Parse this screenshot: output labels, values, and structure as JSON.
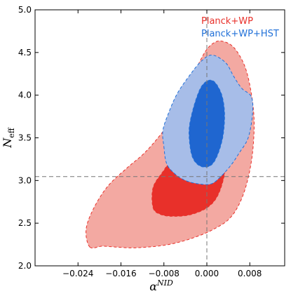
{
  "chart_data": {
    "type": "contour",
    "xlabel": "α",
    "xlabel_sup": "NID",
    "ylabel": "N",
    "ylabel_sub": "eff",
    "xlim": [
      -0.032,
      0.0145
    ],
    "ylim": [
      2.0,
      5.0
    ],
    "xticks": [
      -0.024,
      -0.016,
      -0.008,
      0.0,
      0.008
    ],
    "xtick_labels": [
      "−0.024",
      "−0.016",
      "−0.008",
      "0.000",
      "0.008"
    ],
    "yticks": [
      2.0,
      2.5,
      3.0,
      3.5,
      4.0,
      4.5,
      5.0
    ],
    "ytick_labels": [
      "2.0",
      "2.5",
      "3.0",
      "3.5",
      "4.0",
      "4.5",
      "5.0"
    ],
    "reference_lines": {
      "x": 0.0,
      "y": 3.046
    },
    "legend_position": "top-right",
    "series": [
      {
        "name": "Planck+WP",
        "color": "#e8302a",
        "contours": [
          {
            "level": "95%",
            "fill": "#f3a9a2",
            "points": [
              [
                -0.0218,
                2.22
              ],
              [
                -0.0195,
                2.23
              ],
              [
                -0.017,
                2.22
              ],
              [
                -0.014,
                2.21
              ],
              [
                -0.011,
                2.22
              ],
              [
                -0.008,
                2.24
              ],
              [
                -0.005,
                2.28
              ],
              [
                -0.002,
                2.34
              ],
              [
                0.001,
                2.42
              ],
              [
                0.004,
                2.54
              ],
              [
                0.006,
                2.72
              ],
              [
                0.0075,
                2.98
              ],
              [
                0.0085,
                3.32
              ],
              [
                0.0088,
                3.7
              ],
              [
                0.0082,
                4.05
              ],
              [
                0.007,
                4.35
              ],
              [
                0.005,
                4.56
              ],
              [
                0.003,
                4.63
              ],
              [
                0.0015,
                4.62
              ],
              [
                -0.0002,
                4.52
              ],
              [
                -0.0022,
                4.28
              ],
              [
                -0.0045,
                3.98
              ],
              [
                -0.007,
                3.68
              ],
              [
                -0.0095,
                3.47
              ],
              [
                -0.012,
                3.3
              ],
              [
                -0.015,
                3.14
              ],
              [
                -0.0185,
                2.93
              ],
              [
                -0.0212,
                2.66
              ],
              [
                -0.0225,
                2.42
              ]
            ]
          },
          {
            "level": "68%",
            "fill": "#e8302a",
            "points": [
              [
                -0.01,
                2.68
              ],
              [
                -0.0085,
                2.6
              ],
              [
                -0.006,
                2.58
              ],
              [
                -0.003,
                2.6
              ],
              [
                0.0,
                2.68
              ],
              [
                0.002,
                2.82
              ],
              [
                0.0033,
                3.08
              ],
              [
                0.0037,
                3.4
              ],
              [
                0.0033,
                3.7
              ],
              [
                0.002,
                3.9
              ],
              [
                0.0005,
                3.95
              ],
              [
                -0.001,
                3.85
              ],
              [
                -0.003,
                3.6
              ],
              [
                -0.0055,
                3.35
              ],
              [
                -0.008,
                3.12
              ],
              [
                -0.01,
                2.92
              ]
            ]
          }
        ]
      },
      {
        "name": "Planck+WP+HST",
        "color": "#2070d8",
        "contours": [
          {
            "level": "95%",
            "fill": "#a7bde8",
            "points": [
              [
                -0.008,
                3.4
              ],
              [
                -0.0075,
                3.2
              ],
              [
                -0.006,
                3.08
              ],
              [
                -0.004,
                3.0
              ],
              [
                -0.0015,
                2.96
              ],
              [
                0.0008,
                2.96
              ],
              [
                0.0025,
                3.04
              ],
              [
                0.0045,
                3.18
              ],
              [
                0.006,
                3.32
              ],
              [
                0.0077,
                3.5
              ],
              [
                0.0085,
                3.78
              ],
              [
                0.0083,
                3.98
              ],
              [
                0.0065,
                4.08
              ],
              [
                0.005,
                4.22
              ],
              [
                0.0035,
                4.38
              ],
              [
                0.001,
                4.47
              ],
              [
                -0.001,
                4.4
              ],
              [
                -0.003,
                4.25
              ],
              [
                -0.0055,
                4.02
              ],
              [
                -0.0072,
                3.78
              ],
              [
                -0.0082,
                3.58
              ]
            ]
          },
          {
            "level": "68%",
            "fill": "#1f66d0",
            "points": [
              [
                -0.003,
                3.35
              ],
              [
                -0.0022,
                3.22
              ],
              [
                -0.0008,
                3.16
              ],
              [
                0.0008,
                3.18
              ],
              [
                0.002,
                3.3
              ],
              [
                0.003,
                3.52
              ],
              [
                0.0033,
                3.78
              ],
              [
                0.0028,
                4.0
              ],
              [
                0.0015,
                4.15
              ],
              [
                0.0002,
                4.17
              ],
              [
                -0.0012,
                4.08
              ],
              [
                -0.0025,
                3.85
              ],
              [
                -0.0033,
                3.6
              ]
            ]
          }
        ]
      }
    ]
  }
}
